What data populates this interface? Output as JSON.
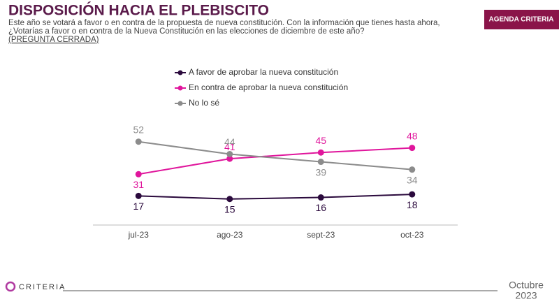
{
  "header": {
    "title": "DISPOSICIÓN HACIA EL PLEBISCITO",
    "subtitle": [
      "Este año se votará a favor o en contra de la propuesta de nueva constitución. Con la información que tienes hasta ahora,",
      "¿Votarías a favor o en contra de la Nueva Constitución en las elecciones de diciembre de este año?"
    ],
    "note": "(PREGUNTA CERRADA)",
    "badge": "AGENDA CRITERIA"
  },
  "footer": {
    "logo": "CRITERIA",
    "date": [
      "Octubre",
      "2023"
    ]
  },
  "chart_data": {
    "type": "line",
    "categories": [
      "jul-23",
      "ago-23",
      "sept-23",
      "oct-23"
    ],
    "series": [
      {
        "name": "A favor de aprobar la nueva constitución",
        "color": "#2b0a3d",
        "values": [
          17,
          15,
          16,
          18
        ]
      },
      {
        "name": "En contra de aprobar la nueva constitución",
        "color": "#e0169c",
        "values": [
          31,
          41,
          45,
          48
        ]
      },
      {
        "name": "No lo sé",
        "color": "#8c8c8c",
        "values": [
          52,
          44,
          39,
          34
        ]
      }
    ],
    "ylim": [
      0,
      60
    ]
  }
}
